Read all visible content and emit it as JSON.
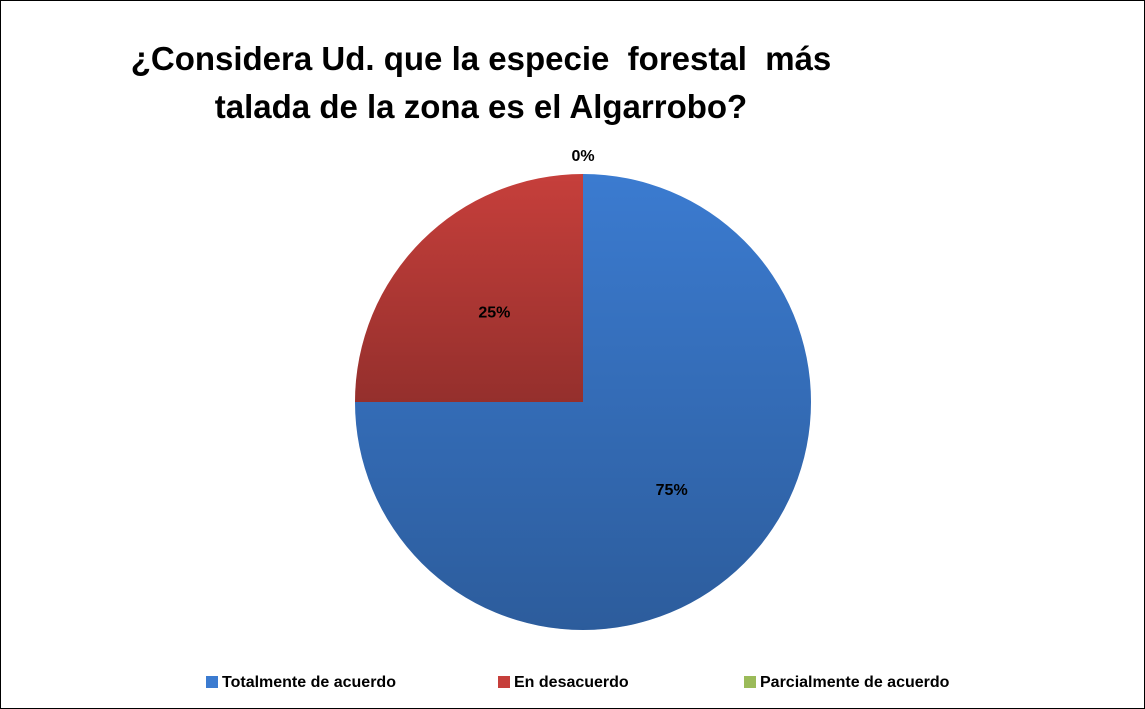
{
  "chart_data": {
    "type": "pie",
    "title": "¿Considera Ud. que la especie  forestal  más talada de la zona es el Algarrobo?",
    "categories": [
      "Totalmente de acuerdo",
      "En desacuerdo",
      "Parcialmente de acuerdo"
    ],
    "values": [
      75,
      25,
      0
    ],
    "value_labels": [
      "75%",
      "25%",
      "0%"
    ],
    "colors": [
      "#3b7bd0",
      "#c63f3b",
      "#9bbb59"
    ],
    "legend": "bottom"
  }
}
